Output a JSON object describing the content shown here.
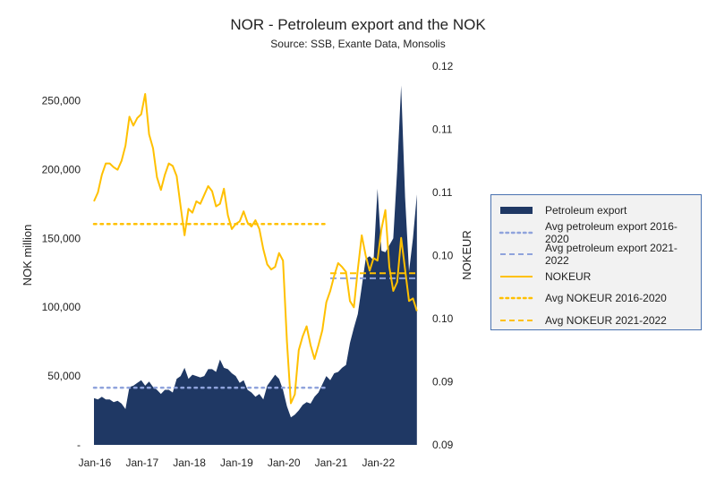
{
  "chart_data": {
    "type": "area+line",
    "title": "NOR - Petroleum export and the NOK",
    "subtitle": "Source: SSB, Exante Data, Monsolis",
    "ylabel_left": "NOK million",
    "ylabel_right": "NOKEUR",
    "x_start": "Jan-16",
    "x_end": "Nov-22",
    "x_ticks": [
      "Jan-16",
      "Jan-17",
      "Jan-18",
      "Jan-19",
      "Jan-20",
      "Jan-21",
      "Jan-22"
    ],
    "ylim_left": [
      0,
      275000
    ],
    "y_ticks_left": [
      {
        "v": 0,
        "label": "-"
      },
      {
        "v": 50000,
        "label": "50,000"
      },
      {
        "v": 100000,
        "label": "100,000"
      },
      {
        "v": 150000,
        "label": "150,000"
      },
      {
        "v": 200000,
        "label": "200,000"
      },
      {
        "v": 250000,
        "label": "250,000"
      }
    ],
    "ylim_right": [
      0.09,
      0.12
    ],
    "y_ticks_right": [
      {
        "v": 0.09,
        "label": "0.09"
      },
      {
        "v": 0.095,
        "label": "0.09"
      },
      {
        "v": 0.1,
        "label": "0.10"
      },
      {
        "v": 0.105,
        "label": "0.10"
      },
      {
        "v": 0.11,
        "label": "0.11"
      },
      {
        "v": 0.115,
        "label": "0.11"
      },
      {
        "v": 0.12,
        "label": "0.12"
      }
    ],
    "grid": false,
    "legend_position": "right",
    "colors": {
      "petroleum": "#1f3864",
      "avg_pet": "#8fa3dc",
      "nok": "#ffc000",
      "axis": "#222222"
    },
    "series": [
      {
        "name": "Petroleum export",
        "axis": "left",
        "type": "area",
        "values": [
          34000,
          33000,
          35000,
          33000,
          33000,
          31000,
          32000,
          30000,
          26000,
          42000,
          43000,
          45000,
          47000,
          43000,
          46000,
          42000,
          40000,
          37000,
          40000,
          40000,
          38000,
          48000,
          50000,
          56000,
          48000,
          51000,
          50000,
          49000,
          50000,
          55000,
          55000,
          53000,
          62000,
          56000,
          55000,
          52000,
          50000,
          45000,
          47000,
          40000,
          38000,
          35000,
          37000,
          33000,
          43000,
          47000,
          51000,
          48000,
          40000,
          28000,
          20000,
          22000,
          25000,
          29000,
          31000,
          30000,
          35000,
          38000,
          44000,
          50000,
          47000,
          52000,
          53000,
          56000,
          58000,
          74000,
          85000,
          95000,
          115000,
          135000,
          137000,
          134000,
          186000,
          141000,
          140000,
          145000,
          150000,
          200000,
          261000,
          180000,
          126000,
          150000,
          182000
        ]
      },
      {
        "name": "Avg petroleum export 2016-2020",
        "axis": "left",
        "type": "dotted",
        "value": 41500,
        "from": "Jan-16",
        "to": "Dec-20"
      },
      {
        "name": "Avg petroleum export 2021-2022",
        "axis": "left",
        "type": "dashed",
        "value": 121000,
        "from": "Jan-21",
        "to": "Nov-22"
      },
      {
        "name": "NOKEUR",
        "axis": "right",
        "type": "line",
        "values": [
          0.1093,
          0.11,
          0.1114,
          0.1123,
          0.1123,
          0.112,
          0.1118,
          0.1125,
          0.1137,
          0.116,
          0.1153,
          0.1159,
          0.1162,
          0.1178,
          0.1146,
          0.1135,
          0.1112,
          0.1102,
          0.1114,
          0.1123,
          0.1121,
          0.1113,
          0.1089,
          0.1066,
          0.1087,
          0.1084,
          0.1093,
          0.1091,
          0.1098,
          0.1105,
          0.1101,
          0.1089,
          0.1091,
          0.1103,
          0.1082,
          0.1071,
          0.1075,
          0.1077,
          0.1085,
          0.1076,
          0.1073,
          0.1078,
          0.1071,
          0.1055,
          0.1043,
          0.1039,
          0.1041,
          0.1052,
          0.1046,
          0.0982,
          0.0933,
          0.094,
          0.0975,
          0.0986,
          0.0994,
          0.0979,
          0.0968,
          0.0979,
          0.0991,
          0.1013,
          0.1022,
          0.1034,
          0.1044,
          0.1041,
          0.1037,
          0.1014,
          0.1009,
          0.1039,
          0.1066,
          0.105,
          0.1038,
          0.1048,
          0.1046,
          0.1071,
          0.1086,
          0.1041,
          0.1022,
          0.1029,
          0.1064,
          0.1039,
          0.1014,
          0.1016,
          0.1006
        ]
      },
      {
        "name": "Avg NOKEUR 2016-2020",
        "axis": "right",
        "type": "dotted",
        "value": 0.1075,
        "from": "Jan-16",
        "to": "Dec-20"
      },
      {
        "name": "Avg NOKEUR 2021-2022",
        "axis": "right",
        "type": "dashed",
        "value": 0.1036,
        "from": "Jan-21",
        "to": "Nov-22"
      }
    ]
  }
}
